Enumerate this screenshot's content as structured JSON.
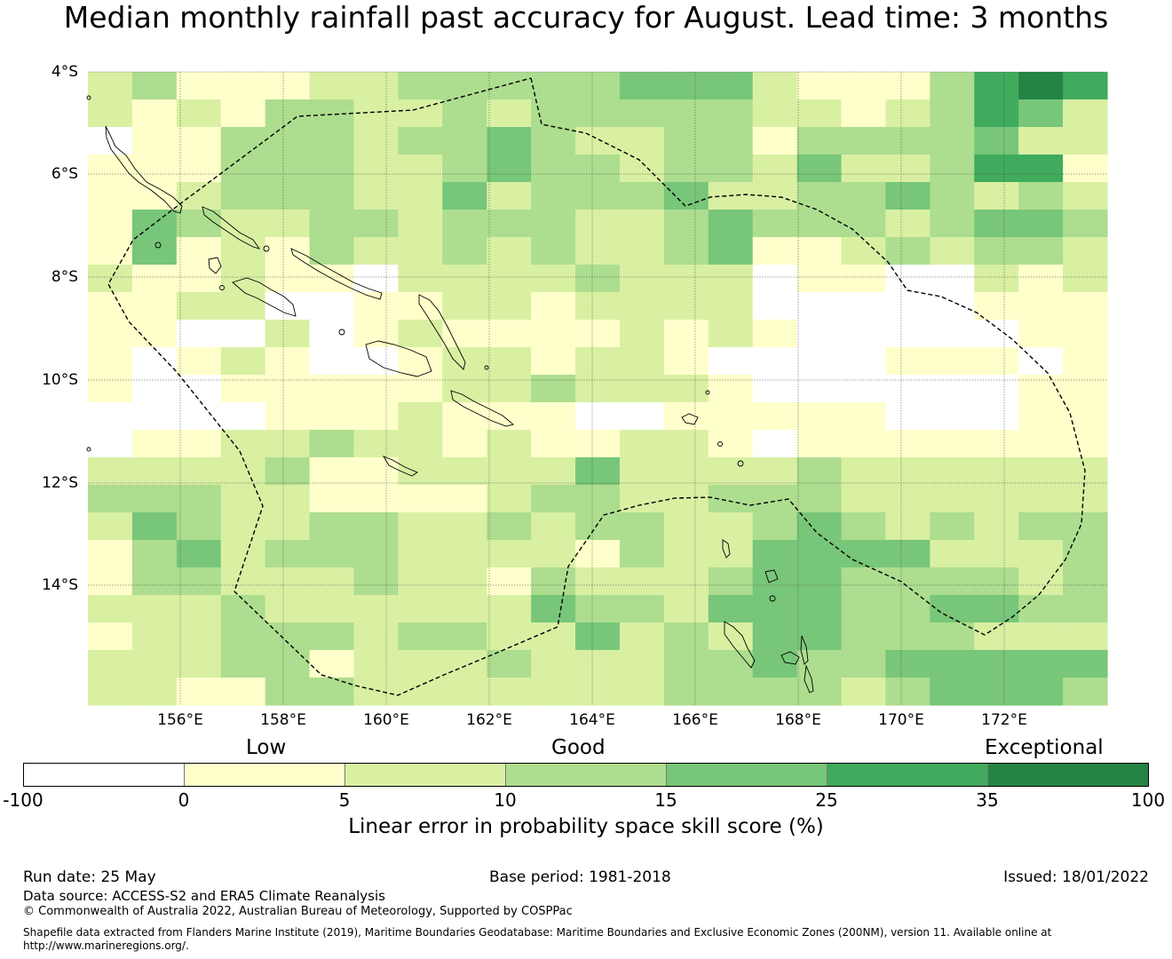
{
  "title": "Median monthly rainfall past accuracy for August. Lead time: 3 months",
  "map": {
    "lon_range": [
      154.2,
      174.0
    ],
    "lat_range": [
      -16.2,
      -4.0
    ],
    "lat_labels": [
      "4°S",
      "6°S",
      "8°S",
      "10°S",
      "12°S",
      "14°S"
    ],
    "lon_labels": [
      "156°E",
      "158°E",
      "160°E",
      "162°E",
      "164°E",
      "166°E",
      "168°E",
      "170°E",
      "172°E"
    ],
    "colors": [
      "#ffffff",
      "#ffffcc",
      "#d9f0a3",
      "#addd8e",
      "#78c679",
      "#41ab5d",
      "#238443"
    ],
    "skill_grid_categories": [
      "23111223333344421113565",
      "21213322323333322123542",
      "01133323343223313333422",
      "11133322343323324223551",
      "11233322423334223343232",
      "14322332333223433323443",
      "14121322323223411232332",
      "21121102222322201100212",
      "11220011221222200000111",
      "11002012111121210000011",
      "10121001221221000011101",
      "10011111223222100000011",
      "00001112111001111100011",
      "01122322121122101111111",
      "22223112222422223222222",
      "33322111123322333222222",
      "24322332232332234323233",
      "13423332222132244442223",
      "13322232213222344333323",
      "22232222224332444334433",
      "12233323322423244333222",
      "22233122232223343344444",
      "22113322222223333234443"
    ]
  },
  "legend": {
    "category_labels": [
      "Low",
      "Good",
      "Exceptional"
    ],
    "ticks": [
      "-100",
      "0",
      "5",
      "10",
      "15",
      "25",
      "35",
      "100"
    ],
    "axis_label": "Linear error in probability space skill score (%)"
  },
  "footer": {
    "run_date": "Run date: 25 May",
    "base_period": "Base period: 1981-2018",
    "issued": "Issued: 18/01/2022",
    "data_source": "Data source: ACCESS-S2 and ERA5 Climate Reanalysis",
    "copyright": "© Commonwealth of Australia 2022, Australian Bureau of Meteorology, Supported by COSPPac",
    "shapefile_line1": "Shapefile data extracted from Flanders Marine Institute (2019), Maritime Boundaries Geodatabase: Maritime Boundaries and Exclusive Economic Zones (200NM), version 11. Available online at",
    "shapefile_line2": "http://www.marineregions.org/."
  }
}
